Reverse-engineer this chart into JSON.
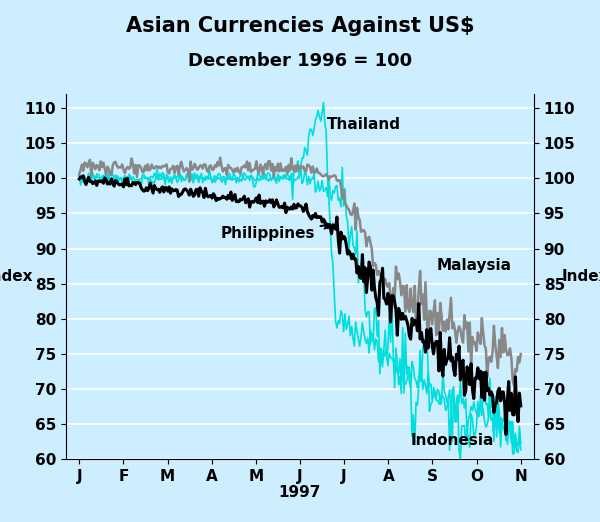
{
  "title": "Asian Currencies Against US$",
  "subtitle": "December 1996 = 100",
  "xlabel": "1997",
  "ylabel_left": "Index",
  "ylabel_right": "Index",
  "ylim": [
    60,
    112
  ],
  "yticks": [
    60,
    65,
    70,
    75,
    80,
    85,
    90,
    95,
    100,
    105,
    110
  ],
  "months": [
    "J",
    "F",
    "M",
    "A",
    "M",
    "J",
    "J",
    "A",
    "S",
    "O",
    "N"
  ],
  "background_color": "#cceeff",
  "color_cyan": "#00dddd",
  "color_gray": "#888888",
  "color_black": "#000000",
  "title_fontsize": 15,
  "subtitle_fontsize": 13,
  "label_fontsize": 11,
  "tick_fontsize": 11,
  "annotation_fontsize": 11
}
